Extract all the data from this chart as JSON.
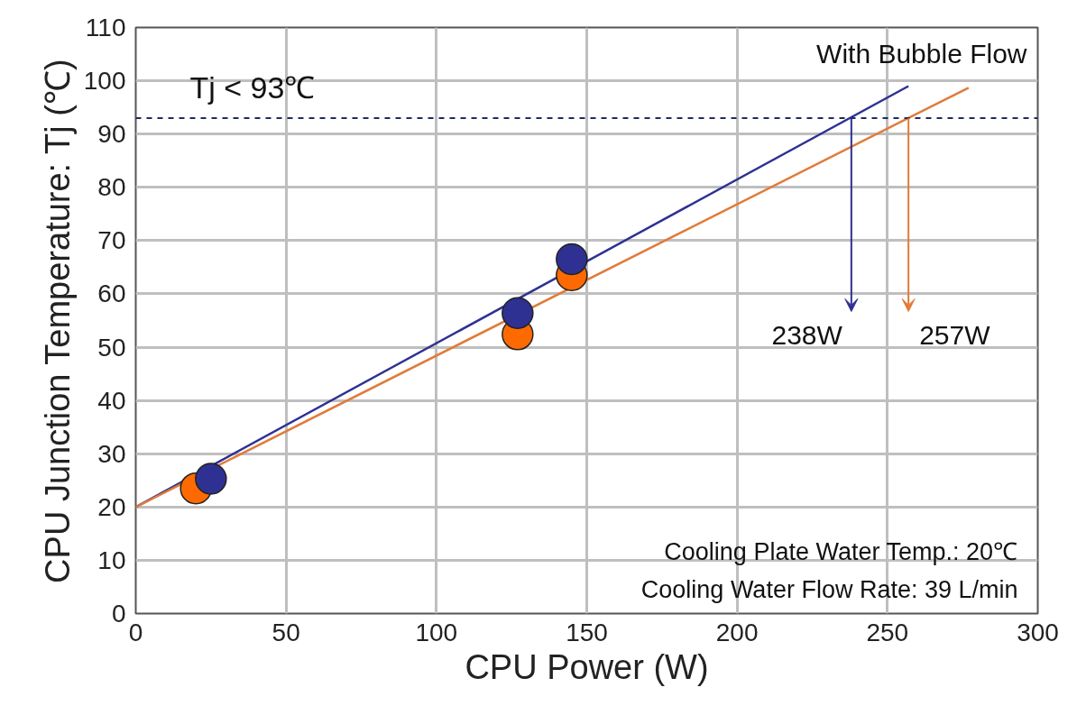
{
  "chart_data": {
    "type": "scatter",
    "xlabel": "CPU Power (W)",
    "ylabel": "CPU Junction Temperature: Tj (℃)",
    "xlim": [
      0,
      300
    ],
    "ylim": [
      0,
      110
    ],
    "xticks": [
      0,
      50,
      100,
      150,
      200,
      250,
      300
    ],
    "yticks": [
      0,
      10,
      20,
      30,
      40,
      50,
      60,
      70,
      80,
      90,
      100,
      110
    ],
    "grid": true,
    "series": [
      {
        "color": "#ff6a00",
        "marker": "circle",
        "x": [
          20,
          127,
          145
        ],
        "values": [
          23.5,
          52.4,
          63.5
        ]
      },
      {
        "color": "#2e3192",
        "marker": "circle",
        "x": [
          25,
          127,
          145
        ],
        "values": [
          25.3,
          56.4,
          66.5
        ]
      },
      {
        "type": "line",
        "marker": "none",
        "color": "#2e3192",
        "x": [
          0,
          257
        ],
        "values": [
          20,
          99
        ]
      },
      {
        "type": "line",
        "marker": "none",
        "color": "#e07b39",
        "x": [
          0,
          277
        ],
        "values": [
          20,
          98.7
        ]
      }
    ],
    "ref_lines": [
      {
        "axis": "y",
        "value": 93,
        "label": "Tj < 93℃",
        "color": "#1f2a60",
        "line_style": "dashed"
      }
    ],
    "annotations": [
      {
        "text": "238W",
        "x": 238,
        "y": 93
      },
      {
        "text": "257W",
        "x": 257,
        "y": 93
      },
      "With Bubble Flow",
      "Cooling Plate Water Temp.: 20℃",
      "Cooling Water Flow Rate: 39 L/min"
    ]
  }
}
